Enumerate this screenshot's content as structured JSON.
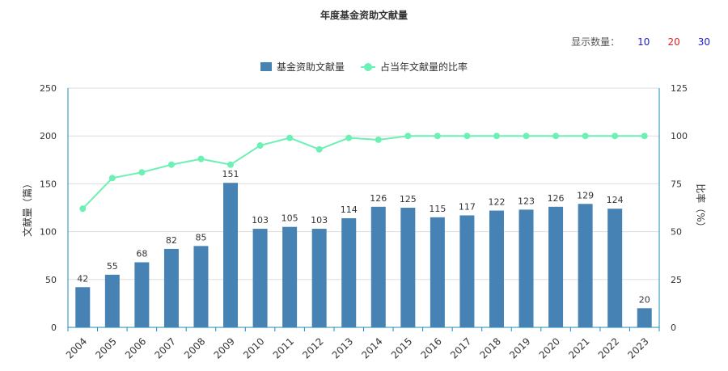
{
  "title": "年度基金资助文献量",
  "display_count": {
    "label": "显示数量：",
    "options": [
      {
        "label": "10",
        "color": "#1a1ad6"
      },
      {
        "label": "20",
        "color": "#e02020"
      },
      {
        "label": "30",
        "color": "#1a1ad6"
      }
    ]
  },
  "colors": {
    "bar": "#4682b4",
    "line": "#6cf0b4",
    "axis": "#1a8bb8",
    "grid": "#dddddd"
  },
  "chart_data": {
    "type": "bar",
    "title": "年度基金资助文献量",
    "categories": [
      "2004",
      "2005",
      "2006",
      "2007",
      "2008",
      "2009",
      "2010",
      "2011",
      "2012",
      "2013",
      "2014",
      "2015",
      "2016",
      "2017",
      "2018",
      "2019",
      "2020",
      "2021",
      "2022",
      "2023"
    ],
    "series": [
      {
        "name": "基金资助文献量",
        "type": "bar",
        "axis": "left",
        "values": [
          42,
          55,
          68,
          82,
          85,
          151,
          103,
          105,
          103,
          114,
          126,
          125,
          115,
          117,
          122,
          123,
          126,
          129,
          124,
          20
        ]
      },
      {
        "name": "占当年文献量的比率",
        "type": "line",
        "axis": "right",
        "values": [
          62,
          78,
          81,
          85,
          88,
          85,
          95,
          99,
          93,
          99,
          98,
          100,
          100,
          100,
          100,
          100,
          100,
          100,
          100,
          100
        ]
      }
    ],
    "ylabel": "文献量（篇）",
    "y2label": "比率（%）",
    "ylim": [
      0,
      250
    ],
    "yticks": [
      0,
      50,
      100,
      150,
      200,
      250
    ],
    "y2lim": [
      0,
      125
    ],
    "y2ticks": [
      0,
      25,
      50,
      75,
      100,
      125
    ],
    "grid": true,
    "legend": "top-center"
  }
}
